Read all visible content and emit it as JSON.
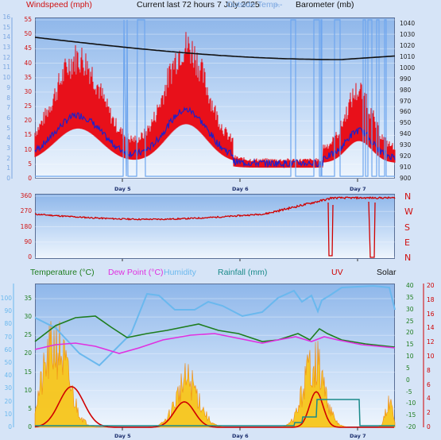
{
  "top": {
    "title": "Current last 72 hours 7 July 2025",
    "windspeed_label": "Windspeed (mph)",
    "outside_temp_label": "Outside Temp.",
    "dash": "---",
    "barometer_label": "Barometer (mb)",
    "left_ticks": [
      "55",
      "50",
      "45",
      "40",
      "35",
      "30",
      "25",
      "20",
      "15",
      "10",
      "5",
      "0"
    ],
    "left_outer_ticks": [
      "16",
      "15",
      "14",
      "13",
      "12",
      "11",
      "10",
      "9",
      "8",
      "7",
      "6",
      "5",
      "4",
      "3",
      "2",
      "1",
      "0"
    ],
    "right_ticks": [
      "1040",
      "1030",
      "1020",
      "1010",
      "1000",
      "990",
      "980",
      "970",
      "960",
      "950",
      "940",
      "930",
      "920",
      "910",
      "900"
    ],
    "day_labels": [
      "Day 5",
      "Day 6",
      "Day 7"
    ]
  },
  "middle": {
    "left_ticks": [
      "360",
      "270",
      "180",
      "90",
      "0"
    ],
    "right_labels": [
      "N",
      "W",
      "S",
      "E",
      "N"
    ],
    "day_labels": [
      "Day 5",
      "Day 6",
      "Day 7"
    ]
  },
  "bottom": {
    "temperature_label": "Temperature (°C)",
    "dewpoint_label": "Dew Point (°C)",
    "humidity_label": "Humidity",
    "rainfall_label": "Rainfall (mm)",
    "uv_label": "UV",
    "solar_label": "Solar",
    "left_outer_ticks": [
      "100",
      "90",
      "80",
      "70",
      "60",
      "50",
      "40",
      "30",
      "20",
      "10",
      "0"
    ],
    "left_ticks": [
      "35",
      "30",
      "25",
      "20",
      "15",
      "10",
      "5",
      "0"
    ],
    "right_ticks": [
      "40",
      "35",
      "30",
      "25",
      "20",
      "15",
      "10",
      "5",
      "0",
      "-5",
      "-10",
      "-15",
      "-20"
    ],
    "right_outer_ticks": [
      "20",
      "18",
      "16",
      "14",
      "12",
      "10",
      "8",
      "6",
      "4",
      "2",
      "0"
    ],
    "day_labels": [
      "Day 5",
      "Day 6",
      "Day 7"
    ]
  },
  "colors": {
    "windspeed": "#e8101a",
    "gust": "#2020c8",
    "barometer": "#111111",
    "temperature": "#1e7d1e",
    "dewpoint": "#e030e0",
    "humidity": "#6ab8ee",
    "rainfall": "#1a8a8a",
    "uv": "#d00000",
    "solar": "#f7c51a"
  }
}
